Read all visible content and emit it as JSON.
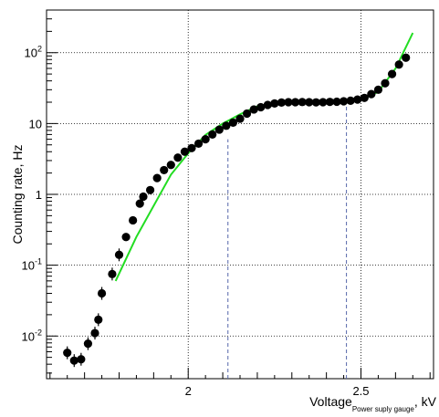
{
  "chart_data": {
    "type": "scatter",
    "xlabel": "Voltage",
    "xlabel_subscript": "Power suply gauge",
    "xlabel_unit": ", kV",
    "ylabel": "Counting rate, Hz",
    "x_scale": "linear",
    "y_scale": "log",
    "xlim": [
      1.59,
      2.71
    ],
    "ylim": [
      0.0025,
      400
    ],
    "grid": true,
    "x_ticks": [
      {
        "value": 2.0,
        "label": "2"
      },
      {
        "value": 2.5,
        "label": "2.5"
      }
    ],
    "y_ticks": [
      {
        "value": 0.01,
        "base": "10",
        "exp": "-2"
      },
      {
        "value": 0.1,
        "base": "10",
        "exp": "-1"
      },
      {
        "value": 1,
        "base": "1",
        "exp": ""
      },
      {
        "value": 10,
        "base": "10",
        "exp": ""
      },
      {
        "value": 100,
        "base": "10",
        "exp": "2"
      }
    ],
    "series": [
      {
        "kind": "points",
        "color": "#000000",
        "points": [
          [
            1.65,
            0.0058
          ],
          [
            1.67,
            0.0045
          ],
          [
            1.69,
            0.0047
          ],
          [
            1.71,
            0.0078
          ],
          [
            1.73,
            0.011
          ],
          [
            1.74,
            0.017
          ],
          [
            1.75,
            0.04
          ],
          [
            1.78,
            0.075
          ],
          [
            1.8,
            0.14
          ],
          [
            1.82,
            0.25
          ],
          [
            1.84,
            0.43
          ],
          [
            1.86,
            0.74
          ],
          [
            1.87,
            0.93
          ],
          [
            1.89,
            1.15
          ],
          [
            1.91,
            1.7
          ],
          [
            1.93,
            2.2
          ],
          [
            1.95,
            2.6
          ],
          [
            1.97,
            3.3
          ],
          [
            1.99,
            4.0
          ],
          [
            2.01,
            4.5
          ],
          [
            2.03,
            5.2
          ],
          [
            2.05,
            6.0
          ],
          [
            2.07,
            7.0
          ],
          [
            2.09,
            8.2
          ],
          [
            2.11,
            9.3
          ],
          [
            2.13,
            10.3
          ],
          [
            2.15,
            11.7
          ],
          [
            2.17,
            13.8
          ],
          [
            2.19,
            15.8
          ],
          [
            2.21,
            17.0
          ],
          [
            2.23,
            18.3
          ],
          [
            2.25,
            19.2
          ],
          [
            2.27,
            19.8
          ],
          [
            2.29,
            20.0
          ],
          [
            2.31,
            20.0
          ],
          [
            2.33,
            20.1
          ],
          [
            2.35,
            20.0
          ],
          [
            2.37,
            19.9
          ],
          [
            2.39,
            20.0
          ],
          [
            2.41,
            20.2
          ],
          [
            2.43,
            20.3
          ],
          [
            2.45,
            20.6
          ],
          [
            2.47,
            21.0
          ],
          [
            2.49,
            21.8
          ],
          [
            2.51,
            23.0
          ],
          [
            2.53,
            26.0
          ],
          [
            2.55,
            30.0
          ],
          [
            2.57,
            37.0
          ],
          [
            2.59,
            50.0
          ],
          [
            2.61,
            68.0
          ],
          [
            2.63,
            85.0
          ]
        ]
      },
      {
        "kind": "fit-line",
        "color": "#22dd22",
        "points": [
          [
            1.79,
            0.06
          ],
          [
            1.85,
            0.25
          ],
          [
            1.95,
            1.9
          ],
          [
            2.0,
            3.8
          ],
          [
            2.05,
            6.9
          ],
          [
            2.1,
            10.0
          ],
          [
            2.15,
            13.5
          ],
          [
            2.2,
            17.5
          ],
          [
            2.25,
            19.2
          ],
          [
            2.3,
            19.9
          ],
          [
            2.35,
            20.0
          ],
          [
            2.4,
            20.0
          ],
          [
            2.45,
            20.3
          ],
          [
            2.5,
            21.5
          ],
          [
            2.55,
            28.0
          ],
          [
            2.6,
            60.0
          ],
          [
            2.65,
            190.0
          ]
        ]
      }
    ],
    "markers": [
      {
        "x": 2.115,
        "y": 6.0
      },
      {
        "x": 2.458,
        "y": 17.5
      }
    ]
  }
}
